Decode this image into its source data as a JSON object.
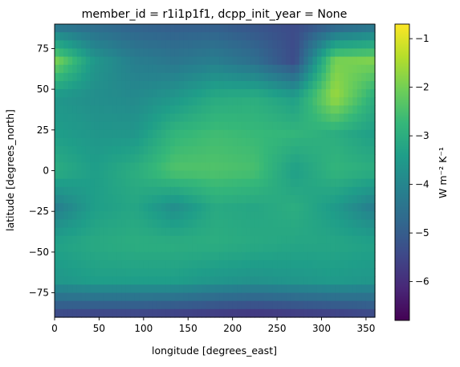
{
  "chart_data": {
    "type": "heatmap",
    "title": "member_id = r1i1p1f1, dcpp_init_year = None",
    "xlabel": "longitude [degrees_east]",
    "ylabel": "latitude [degrees_north]",
    "xlim": [
      0,
      360
    ],
    "ylim": [
      -90,
      90
    ],
    "xticks": [
      0,
      50,
      100,
      150,
      200,
      250,
      300,
      350
    ],
    "yticks": [
      -75,
      -50,
      -25,
      0,
      25,
      50,
      75
    ],
    "colorbar": {
      "label": "W m⁻² K⁻¹",
      "range": [
        -6.8,
        -0.7
      ],
      "ticks": [
        -6,
        -5,
        -4,
        -3,
        -2,
        -1
      ],
      "colormap": "viridis"
    },
    "approximate_field": {
      "lon": [
        0,
        45,
        90,
        135,
        180,
        225,
        270,
        315,
        360
      ],
      "lat": [
        90,
        67.5,
        45,
        22.5,
        0,
        -22.5,
        -45,
        -67.5,
        -90
      ],
      "values": [
        [
          -4.6,
          -4.7,
          -4.9,
          -5.0,
          -5.0,
          -5.2,
          -5.4,
          -5.0,
          -4.6
        ],
        [
          -1.9,
          -3.6,
          -4.2,
          -4.4,
          -4.2,
          -4.6,
          -5.4,
          -2.0,
          -1.9
        ],
        [
          -3.6,
          -3.8,
          -3.9,
          -3.6,
          -3.1,
          -3.0,
          -3.4,
          -1.6,
          -3.0
        ],
        [
          -3.4,
          -3.6,
          -3.6,
          -2.8,
          -2.6,
          -2.7,
          -2.8,
          -3.0,
          -3.4
        ],
        [
          -3.0,
          -3.4,
          -3.0,
          -2.4,
          -2.4,
          -2.5,
          -3.4,
          -2.8,
          -3.0
        ],
        [
          -4.2,
          -3.4,
          -3.2,
          -3.8,
          -3.1,
          -3.2,
          -3.0,
          -3.5,
          -4.2
        ],
        [
          -3.3,
          -3.1,
          -3.0,
          -3.0,
          -3.0,
          -3.1,
          -3.2,
          -3.2,
          -3.3
        ],
        [
          -3.6,
          -3.4,
          -3.4,
          -3.4,
          -3.6,
          -3.7,
          -3.6,
          -3.5,
          -3.6
        ],
        [
          -5.6,
          -5.7,
          -5.7,
          -5.8,
          -5.9,
          -6.0,
          -5.9,
          -5.8,
          -5.6
        ]
      ]
    },
    "colors": {
      "viridis": [
        "#440154",
        "#482878",
        "#3e4989",
        "#31688e",
        "#26828e",
        "#1f9e89",
        "#35b779",
        "#6ece58",
        "#b5de2b",
        "#fde725"
      ]
    }
  }
}
